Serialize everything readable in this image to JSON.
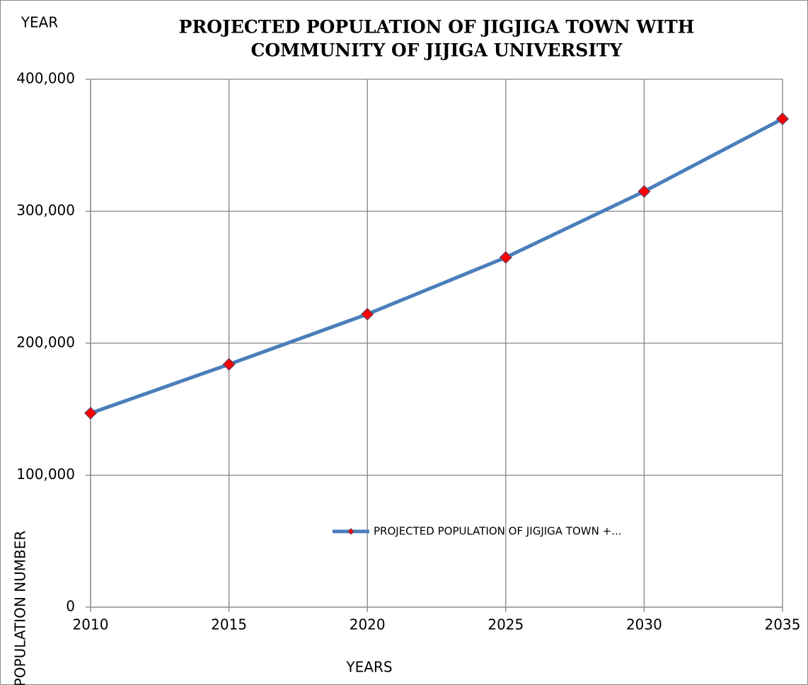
{
  "chart_data": {
    "type": "line",
    "title": [
      "PROJECTED POPULATION OF JIGJIGA TOWN WITH",
      "COMMUNITY OF JIJIGA UNIVERSITY"
    ],
    "annotation": "YEAR",
    "x_label": "YEARS",
    "y_label": "POPULATION NUMBER",
    "x": [
      2010,
      2015,
      2020,
      2025,
      2030,
      2035
    ],
    "series": [
      {
        "name": "PROJECTED POPULATION OF JIGJIGA TOWN +...",
        "color": "#4a7ebb",
        "marker_color": "#ff0000",
        "values": [
          147000,
          184000,
          222000,
          265000,
          315000,
          370000
        ]
      }
    ],
    "xlim": [
      2010,
      2035
    ],
    "xticks": [
      2010,
      2015,
      2020,
      2025,
      2030,
      2035
    ],
    "ylim": [
      0,
      400000
    ],
    "yticks": [
      0,
      {
        "value": 100000,
        "label": "100,000"
      },
      {
        "value": 200000,
        "label": "200,000"
      },
      {
        "value": 300000,
        "label": "300,000"
      },
      {
        "value": 400000,
        "label": "400,000"
      }
    ],
    "grid": true
  }
}
